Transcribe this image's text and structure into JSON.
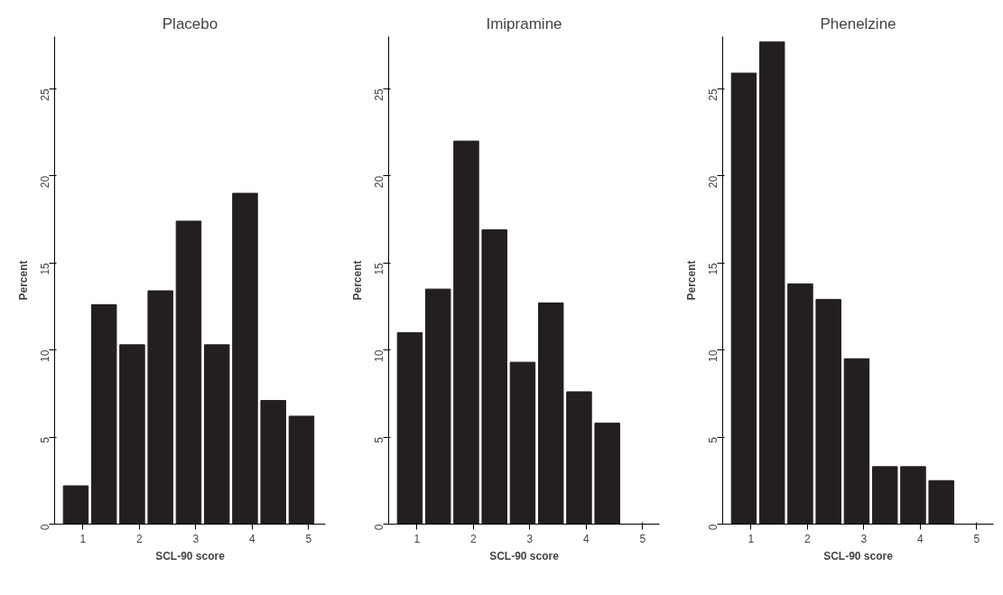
{
  "chart_data": [
    {
      "type": "histogram",
      "title": "Placebo",
      "xlabel": "SCL-90 score",
      "ylabel": "Percent",
      "bins": [
        0.625,
        1.125,
        1.625,
        2.125,
        2.625,
        3.125,
        3.625,
        4.125,
        4.625,
        5.125
      ],
      "values": [
        2.2,
        12.6,
        10.3,
        13.4,
        17.4,
        10.3,
        19.0,
        7.1,
        6.2
      ],
      "color": "#231f20",
      "xlim": [
        0.5,
        5.3
      ],
      "ylim": [
        0,
        28
      ],
      "xticks": [
        1,
        2,
        3,
        4,
        5
      ],
      "yticks": [
        0,
        5,
        10,
        15,
        20,
        25
      ],
      "grid": false
    },
    {
      "type": "histogram",
      "title": "Imipramine",
      "xlabel": "SCL-90 score",
      "ylabel": "Percent",
      "bins": [
        0.625,
        1.125,
        1.625,
        2.125,
        2.625,
        3.125,
        3.625,
        4.125,
        4.625
      ],
      "values": [
        11.0,
        13.5,
        22.0,
        16.9,
        9.3,
        12.7,
        7.6,
        5.8
      ],
      "color": "#231f20",
      "xlim": [
        0.5,
        5.3
      ],
      "ylim": [
        0,
        28
      ],
      "xticks": [
        1,
        2,
        3,
        4,
        5
      ],
      "yticks": [
        0,
        5,
        10,
        15,
        20,
        25
      ],
      "grid": false
    },
    {
      "type": "histogram",
      "title": "Phenelzine",
      "xlabel": "SCL-90 score",
      "ylabel": "Percent",
      "bins": [
        0.625,
        1.125,
        1.625,
        2.125,
        2.625,
        3.125,
        3.625,
        4.125,
        4.625
      ],
      "values": [
        25.9,
        27.7,
        13.8,
        12.9,
        9.5,
        3.3,
        3.3,
        2.5
      ],
      "color": "#231f20",
      "xlim": [
        0.5,
        5.3
      ],
      "ylim": [
        0,
        28
      ],
      "xticks": [
        1,
        2,
        3,
        4,
        5
      ],
      "yticks": [
        0,
        5,
        10,
        15,
        20,
        25
      ],
      "grid": false
    }
  ]
}
